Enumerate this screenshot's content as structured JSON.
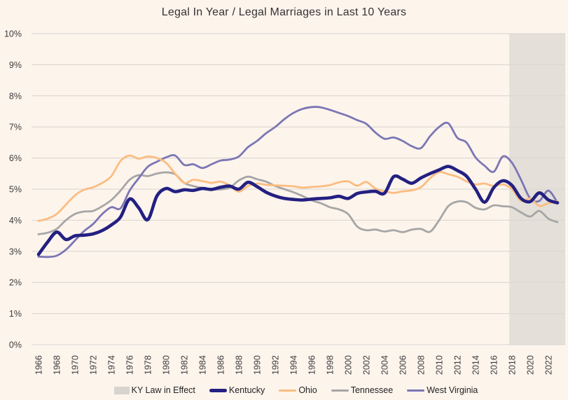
{
  "chart": {
    "title": "Legal In Year / Legal Marriages in Last 10 Years"
  },
  "chart_data": {
    "type": "line",
    "title": "Legal In Year / Legal Marriages in Last 10 Years",
    "xlabel": "",
    "ylabel": "",
    "ylim": [
      0,
      10
    ],
    "y_tick_labels": [
      "0%",
      "1%",
      "2%",
      "3%",
      "4%",
      "5%",
      "6%",
      "7%",
      "8%",
      "9%",
      "10%"
    ],
    "x_tick_years": [
      1966,
      1968,
      1970,
      1972,
      1974,
      1976,
      1978,
      1980,
      1982,
      1984,
      1986,
      1988,
      1990,
      1992,
      1994,
      1996,
      1998,
      2000,
      2002,
      2004,
      2006,
      2008,
      2010,
      2012,
      2014,
      2016,
      2018,
      2020,
      2022
    ],
    "start_year": 1966,
    "end_year": 2023,
    "grid": true,
    "legend_position": "bottom",
    "background_color": "#fdf4ec",
    "grid_color": "#d8d4cf",
    "region": {
      "label": "KY Law in Effect",
      "start_year": 2017.7,
      "color": "#e4e0d9"
    },
    "series": [
      {
        "name": "Tennessee",
        "color": "#a6a6a6",
        "width": 2.8,
        "values": [
          3.55,
          3.6,
          3.72,
          4.0,
          4.2,
          4.28,
          4.3,
          4.45,
          4.65,
          4.95,
          5.3,
          5.45,
          5.42,
          5.5,
          5.54,
          5.48,
          5.2,
          5.1,
          5.04,
          5.0,
          4.99,
          5.05,
          5.28,
          5.4,
          5.32,
          5.24,
          5.1,
          5.0,
          4.9,
          4.78,
          4.64,
          4.55,
          4.42,
          4.35,
          4.2,
          3.8,
          3.68,
          3.7,
          3.64,
          3.68,
          3.62,
          3.7,
          3.72,
          3.63,
          4.0,
          4.45,
          4.6,
          4.58,
          4.4,
          4.35,
          4.48,
          4.45,
          4.42,
          4.25,
          4.12,
          4.3,
          4.05,
          3.94
        ]
      },
      {
        "name": "West Virginia",
        "color": "#7b76b4",
        "width": 2.8,
        "values": [
          2.83,
          2.82,
          2.86,
          3.05,
          3.35,
          3.65,
          3.88,
          4.2,
          4.42,
          4.38,
          4.95,
          5.35,
          5.72,
          5.88,
          6.02,
          6.08,
          5.78,
          5.8,
          5.68,
          5.8,
          5.92,
          5.95,
          6.05,
          6.35,
          6.55,
          6.8,
          7.0,
          7.25,
          7.45,
          7.58,
          7.64,
          7.63,
          7.55,
          7.45,
          7.35,
          7.22,
          7.1,
          6.82,
          6.62,
          6.66,
          6.55,
          6.38,
          6.32,
          6.7,
          7.0,
          7.12,
          6.65,
          6.5,
          6.02,
          5.75,
          5.56,
          6.05,
          5.85,
          5.3,
          4.7,
          4.62,
          4.95,
          4.56
        ]
      },
      {
        "name": "Ohio",
        "color": "#fbbd80",
        "width": 2.8,
        "values": [
          3.98,
          4.05,
          4.2,
          4.5,
          4.8,
          4.98,
          5.06,
          5.2,
          5.42,
          5.9,
          6.08,
          5.98,
          6.05,
          6.0,
          5.85,
          5.5,
          5.2,
          5.3,
          5.26,
          5.2,
          5.24,
          5.12,
          4.92,
          5.1,
          5.18,
          5.14,
          5.12,
          5.11,
          5.09,
          5.05,
          5.07,
          5.09,
          5.13,
          5.22,
          5.25,
          5.11,
          5.23,
          5.02,
          4.93,
          4.88,
          4.93,
          4.96,
          5.06,
          5.35,
          5.55,
          5.48,
          5.4,
          5.25,
          5.15,
          5.18,
          5.1,
          5.15,
          5.0,
          4.62,
          4.7,
          4.46,
          4.55,
          4.62
        ]
      },
      {
        "name": "Kentucky",
        "color": "#232082",
        "width": 4.6,
        "values": [
          2.9,
          3.3,
          3.62,
          3.38,
          3.5,
          3.52,
          3.56,
          3.67,
          3.85,
          4.1,
          4.68,
          4.4,
          4.02,
          4.78,
          5.02,
          4.92,
          4.98,
          4.96,
          5.02,
          4.99,
          5.06,
          5.1,
          5.0,
          5.22,
          5.08,
          4.9,
          4.78,
          4.7,
          4.67,
          4.65,
          4.68,
          4.7,
          4.72,
          4.77,
          4.7,
          4.86,
          4.91,
          4.93,
          4.87,
          5.4,
          5.32,
          5.19,
          5.36,
          5.5,
          5.62,
          5.73,
          5.6,
          5.42,
          5.0,
          4.58,
          5.05,
          5.27,
          5.12,
          4.7,
          4.6,
          4.88,
          4.65,
          4.56
        ]
      }
    ]
  },
  "legend": {
    "items": [
      {
        "label": "KY Law in Effect",
        "type": "box",
        "color": "#d7d4cf"
      },
      {
        "label": "Kentucky",
        "type": "line",
        "color": "#232082"
      },
      {
        "label": "Ohio",
        "type": "line",
        "color": "#fbbd80"
      },
      {
        "label": "Tennessee",
        "type": "line",
        "color": "#a6a6a6"
      },
      {
        "label": "West Virginia",
        "type": "line",
        "color": "#7b76b4"
      }
    ]
  }
}
